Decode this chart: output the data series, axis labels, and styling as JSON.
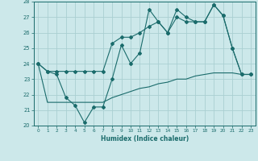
{
  "xlabel": "Humidex (Indice chaleur)",
  "bg_color": "#cce8ea",
  "grid_color": "#aacfd2",
  "line_color": "#1a6b6b",
  "xlim": [
    -0.5,
    23.5
  ],
  "ylim": [
    20,
    28
  ],
  "xticks": [
    0,
    1,
    2,
    3,
    4,
    5,
    6,
    7,
    8,
    9,
    10,
    11,
    12,
    13,
    14,
    15,
    16,
    17,
    18,
    19,
    20,
    21,
    22,
    23
  ],
  "yticks": [
    20,
    21,
    22,
    23,
    24,
    25,
    26,
    27,
    28
  ],
  "series1_x": [
    0,
    1,
    2,
    3,
    4,
    5,
    6,
    7,
    8,
    9,
    10,
    11,
    12,
    13,
    14,
    15,
    16,
    17,
    18,
    19,
    20,
    21,
    22,
    23
  ],
  "series1_y": [
    24.0,
    23.5,
    23.3,
    21.8,
    21.3,
    20.2,
    21.2,
    21.2,
    23.0,
    25.2,
    24.0,
    24.7,
    27.5,
    26.7,
    26.0,
    27.5,
    27.0,
    26.7,
    26.7,
    27.8,
    27.1,
    25.0,
    23.3,
    23.3
  ],
  "series2_x": [
    0,
    1,
    2,
    3,
    4,
    5,
    6,
    7,
    8,
    9,
    10,
    11,
    12,
    13,
    14,
    15,
    16,
    17,
    18,
    19,
    20,
    21,
    22,
    23
  ],
  "series2_y": [
    24.0,
    23.5,
    23.5,
    23.5,
    23.5,
    23.5,
    23.5,
    23.5,
    25.3,
    25.7,
    25.7,
    26.0,
    26.4,
    26.7,
    26.0,
    27.0,
    26.7,
    26.7,
    26.7,
    27.8,
    27.1,
    25.0,
    23.3,
    23.3
  ],
  "series3_x": [
    0,
    1,
    2,
    3,
    4,
    5,
    6,
    7,
    8,
    9,
    10,
    11,
    12,
    13,
    14,
    15,
    16,
    17,
    18,
    19,
    20,
    21,
    22,
    23
  ],
  "series3_y": [
    24.0,
    21.5,
    21.5,
    21.5,
    21.5,
    21.5,
    21.5,
    21.5,
    21.8,
    22.0,
    22.2,
    22.4,
    22.5,
    22.7,
    22.8,
    23.0,
    23.0,
    23.2,
    23.3,
    23.4,
    23.4,
    23.4,
    23.3,
    23.3
  ]
}
